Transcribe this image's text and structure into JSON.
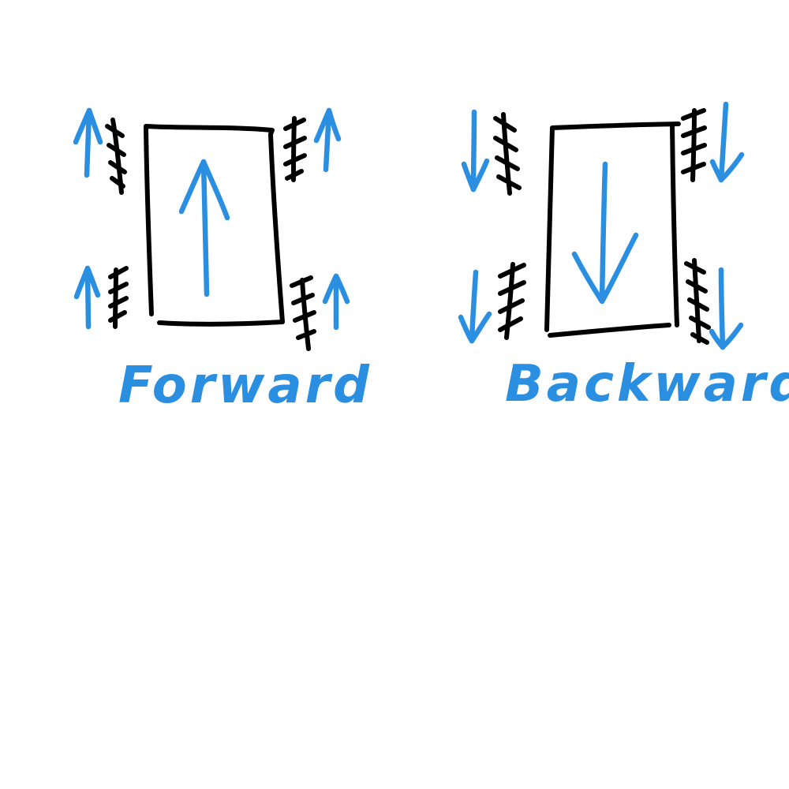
{
  "colors": {
    "ink": "#000000",
    "arrow": "#2a8fe0",
    "background": "#ffffff"
  },
  "panels": [
    {
      "caption": "Forward",
      "direction": "up"
    },
    {
      "caption": "Backward",
      "direction": "down"
    }
  ]
}
